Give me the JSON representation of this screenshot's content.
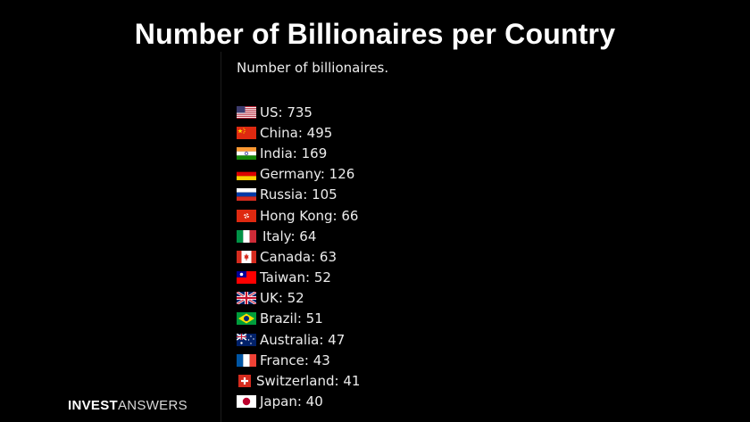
{
  "title": "Number of Billionaires per Country",
  "header": "Number of billionaires.",
  "countries": [
    {
      "label": "US: 735",
      "flag": "us-flag-icon"
    },
    {
      "label": "China: 495",
      "flag": "china-flag-icon"
    },
    {
      "label": "India: 169",
      "flag": "india-flag-icon"
    },
    {
      "label": "Germany: 126",
      "flag": "germany-flag-icon"
    },
    {
      "label": "Russia: 105",
      "flag": "russia-flag-icon"
    },
    {
      "label": "Hong Kong: 66",
      "flag": "hong-kong-flag-icon"
    },
    {
      "label": "Italy: 64",
      "flag": "italy-flag-icon"
    },
    {
      "label": "Canada: 63",
      "flag": "canada-flag-icon"
    },
    {
      "label": "Taiwan: 52",
      "flag": "taiwan-flag-icon"
    },
    {
      "label": "UK: 52",
      "flag": "uk-flag-icon"
    },
    {
      "label": "Brazil: 51",
      "flag": "brazil-flag-icon"
    },
    {
      "label": "Australia: 47",
      "flag": "australia-flag-icon"
    },
    {
      "label": "France: 43",
      "flag": "france-flag-icon"
    },
    {
      "label": "Switzerland: 41",
      "flag": "switzerland-flag-icon"
    },
    {
      "label": "Japan: 40",
      "flag": "japan-flag-icon"
    }
  ],
  "brand": {
    "part1": "INVEST",
    "part2": "ANSWERS"
  },
  "colors": {
    "background": "#000000",
    "title": "#ffffff",
    "text": "#ececec"
  }
}
